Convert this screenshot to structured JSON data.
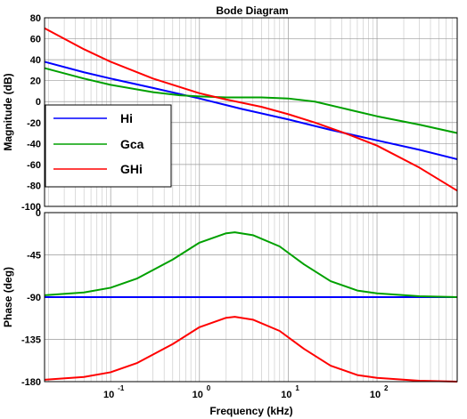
{
  "chart_data": {
    "type": "line",
    "title": "Bode Diagram",
    "xlabel": "Frequency  (kHz)",
    "x_scale": "log",
    "xlim": [
      0.018,
      800
    ],
    "x_ticks": [
      {
        "value": 0.1,
        "base": "10",
        "exp": "-1"
      },
      {
        "value": 1,
        "base": "10",
        "exp": "0"
      },
      {
        "value": 10,
        "base": "10",
        "exp": "1"
      },
      {
        "value": 100,
        "base": "10",
        "exp": "2"
      }
    ],
    "grid": true,
    "legend": {
      "placement": "left-middle of magnitude plot"
    },
    "colors": {
      "Hi": "#0000ff",
      "Gca": "#00a000",
      "GHi": "#ff0000"
    },
    "subplots": [
      {
        "id": "magnitude",
        "ylabel": "Magnitude (dB)",
        "ylim": [
          -100,
          80
        ],
        "yticks": [
          "80",
          "60",
          "40",
          "20",
          "0",
          "-20",
          "-40",
          "-60",
          "-80",
          "-100"
        ],
        "series": [
          {
            "name": "Hi",
            "x": [
              0.018,
              0.05,
              0.1,
              0.3,
              1,
              3,
              10,
              30,
              100,
              300,
              800
            ],
            "y": [
              38,
              28,
              22,
              13,
              3,
              -7,
              -17,
              -27,
              -37,
              -46,
              -55
            ]
          },
          {
            "name": "Gca",
            "x": [
              0.018,
              0.05,
              0.1,
              0.3,
              0.6,
              1,
              2,
              5,
              10,
              20,
              50,
              100,
              300,
              800
            ],
            "y": [
              32,
              22,
              16,
              9,
              6,
              5,
              4,
              4,
              3,
              0,
              -8,
              -14,
              -22,
              -30
            ]
          },
          {
            "name": "GHi",
            "x": [
              0.018,
              0.05,
              0.1,
              0.3,
              1,
              2,
              5,
              10,
              20,
              50,
              100,
              300,
              800
            ],
            "y": [
              70,
              50,
              38,
              22,
              8,
              2,
              -5,
              -12,
              -20,
              -32,
              -42,
              -63,
              -85
            ]
          }
        ]
      },
      {
        "id": "phase",
        "ylabel": "Phase (deg)",
        "ylim": [
          -180,
          0
        ],
        "yticks": [
          "0",
          "-45",
          "-90",
          "-135",
          "-180"
        ],
        "series": [
          {
            "name": "Hi",
            "x": [
              0.018,
              800
            ],
            "y": [
              -90,
              -90
            ]
          },
          {
            "name": "Gca",
            "x": [
              0.018,
              0.05,
              0.1,
              0.2,
              0.5,
              1,
              2,
              2.5,
              4,
              8,
              15,
              30,
              60,
              100,
              300,
              800
            ],
            "y": [
              -88,
              -85,
              -80,
              -70,
              -50,
              -32,
              -22,
              -21,
              -24,
              -36,
              -55,
              -73,
              -83,
              -86,
              -89,
              -90
            ]
          },
          {
            "name": "GHi",
            "x": [
              0.018,
              0.05,
              0.1,
              0.2,
              0.5,
              1,
              2,
              2.5,
              4,
              8,
              15,
              30,
              60,
              100,
              300,
              800
            ],
            "y": [
              -178,
              -175,
              -170,
              -160,
              -140,
              -122,
              -112,
              -111,
              -114,
              -126,
              -145,
              -163,
              -173,
              -176,
              -179,
              -180
            ]
          }
        ]
      }
    ]
  }
}
